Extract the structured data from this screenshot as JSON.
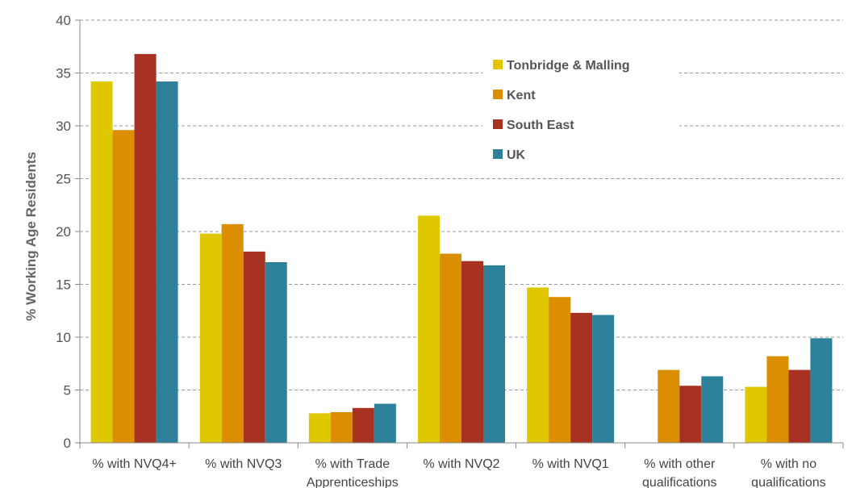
{
  "chart_data": {
    "type": "bar",
    "title": "",
    "xlabel": "",
    "ylabel": "% Working Age Residents",
    "ylim": [
      0,
      40
    ],
    "yticks": [
      0,
      5,
      10,
      15,
      20,
      25,
      30,
      35,
      40
    ],
    "grid": "horizontal dashed",
    "legend_position": "top-right",
    "categories": [
      [
        "% with NVQ4+"
      ],
      [
        "% with NVQ3"
      ],
      [
        "% with Trade",
        "Apprenticeships"
      ],
      [
        "% with NVQ2"
      ],
      [
        "% with NVQ1"
      ],
      [
        "% with other",
        "qualifications"
      ],
      [
        "% with no",
        "qualifications"
      ]
    ],
    "series": [
      {
        "name": "Tonbridge & Malling",
        "color": "#e0c800",
        "values": [
          34.2,
          19.8,
          2.8,
          21.5,
          14.7,
          null,
          5.3
        ]
      },
      {
        "name": "Kent",
        "color": "#db8e00",
        "values": [
          29.6,
          20.7,
          2.9,
          17.9,
          13.8,
          6.9,
          8.2
        ]
      },
      {
        "name": "South East",
        "color": "#a83222",
        "values": [
          36.8,
          18.1,
          3.3,
          17.2,
          12.3,
          5.4,
          6.9
        ]
      },
      {
        "name": "UK",
        "color": "#2e819b",
        "values": [
          34.2,
          17.1,
          3.7,
          16.8,
          12.1,
          6.3,
          9.9
        ]
      }
    ]
  }
}
